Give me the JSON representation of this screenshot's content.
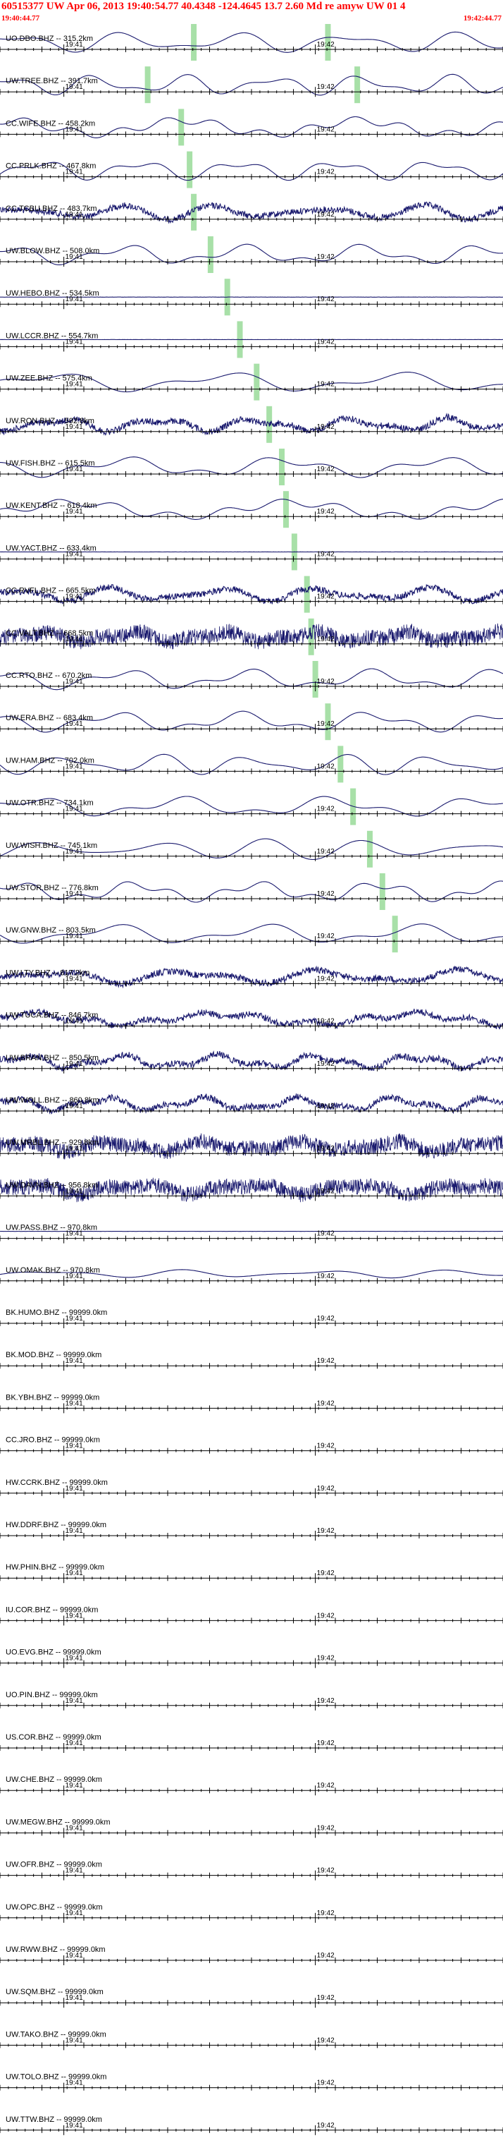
{
  "header": {
    "title": "60515377 UW Apr 06, 2013 19:40:54.77   40.4348 -124.4645 13.7 2.60 Md re amyw UW 01   4",
    "start_time": "19:40:44.77",
    "end_time": "19:42:44.77"
  },
  "colors": {
    "header_text": "#ff0000",
    "trace": "#1a1a6e",
    "pick": "#a8e0a8",
    "axis": "#000000",
    "label": "#000000"
  },
  "chart_data": {
    "type": "line",
    "title": "",
    "x_start": "19:40:44.77",
    "x_end": "19:42:44.77",
    "minute_ticks": [
      "19:41",
      "19:42"
    ],
    "channels": [
      {
        "label": "UO.DBO.BHZ -- 315.2km",
        "amp": "medium"
      },
      {
        "label": "UW.TREE.BHZ -- 391.7km",
        "amp": "medium"
      },
      {
        "label": "CC.WIFE.BHZ -- 458.2km",
        "amp": "medium"
      },
      {
        "label": "CC.PRLK.BHZ -- 467.8km",
        "amp": "medium"
      },
      {
        "label": "CC.TCBU.BHZ -- 483.7km",
        "amp": "noisy"
      },
      {
        "label": "UW.BLOW.BHZ -- 508.0km",
        "amp": "medium"
      },
      {
        "label": "UW.HEBO.BHZ -- 534.5km",
        "amp": "flat"
      },
      {
        "label": "UW.LCCR.BHZ -- 554.7km",
        "amp": "flat"
      },
      {
        "label": "UW.ZEE.BHZ -- 575.4km",
        "amp": "medium"
      },
      {
        "label": "UW.RON.BHZ -- 592.8km",
        "amp": "noisy"
      },
      {
        "label": "UW.FISH.BHZ -- 615.5km",
        "amp": "medium"
      },
      {
        "label": "UW.KENT.BHZ -- 618.4km",
        "amp": "medium"
      },
      {
        "label": "UW.YACT.BHZ -- 633.4km",
        "amp": "flat"
      },
      {
        "label": "CC.RVFL.BHZ -- 665.5km",
        "amp": "noisy"
      },
      {
        "label": "CC.VALT.BHZ -- 668.5km",
        "amp": "dense"
      },
      {
        "label": "CC.RTO.BHZ -- 670.2km",
        "amp": "medium"
      },
      {
        "label": "UW.ERA.BHZ -- 683.4km",
        "amp": "medium"
      },
      {
        "label": "UW.HAM.BHZ -- 702.0km",
        "amp": "medium"
      },
      {
        "label": "UW.OTR.BHZ -- 734.1km",
        "amp": "medium"
      },
      {
        "label": "UW.WISH.BHZ -- 745.1km",
        "amp": "medium"
      },
      {
        "label": "UW.STOR.BHZ -- 776.8km",
        "amp": "medium"
      },
      {
        "label": "UW.GNW.BHZ -- 803.5km",
        "amp": "medium"
      },
      {
        "label": "UW.LTY.BHZ -- 817.2km",
        "amp": "noisy"
      },
      {
        "label": "UW.TUCA.BHZ -- 846.7km",
        "amp": "noisy"
      },
      {
        "label": "UW.BRAN.BHZ -- 850.5km",
        "amp": "noisy"
      },
      {
        "label": "UW.WOLL.BHZ -- 860.8km",
        "amp": "noisy"
      },
      {
        "label": "UW.MRBL.BHZ -- 929.8km",
        "amp": "dense"
      },
      {
        "label": "UW.DAVN.BHZ -- 956.8km",
        "amp": "dense"
      },
      {
        "label": "UW.PASS.BHZ -- 970.8km",
        "amp": "flat"
      },
      {
        "label": "UW.OMAK.BHZ -- 970.8km",
        "amp": "small"
      },
      {
        "label": "BK.HUMO.BHZ -- 99999.0km",
        "amp": "none"
      },
      {
        "label": "BK.MOD.BHZ -- 99999.0km",
        "amp": "none"
      },
      {
        "label": "BK.YBH.BHZ -- 99999.0km",
        "amp": "none"
      },
      {
        "label": "CC.JRO.BHZ -- 99999.0km",
        "amp": "none"
      },
      {
        "label": "HW.CCRK.BHZ -- 99999.0km",
        "amp": "none"
      },
      {
        "label": "HW.DDRF.BHZ -- 99999.0km",
        "amp": "none"
      },
      {
        "label": "HW.PHIN.BHZ -- 99999.0km",
        "amp": "none"
      },
      {
        "label": "IU.COR.BHZ -- 99999.0km",
        "amp": "none"
      },
      {
        "label": "UO.EVG.BHZ -- 99999.0km",
        "amp": "none"
      },
      {
        "label": "UO.PIN.BHZ -- 99999.0km",
        "amp": "none"
      },
      {
        "label": "US.COR.BHZ -- 99999.0km",
        "amp": "none"
      },
      {
        "label": "UW.CHE.BHZ -- 99999.0km",
        "amp": "none"
      },
      {
        "label": "UW.MEGW.BHZ -- 99999.0km",
        "amp": "none"
      },
      {
        "label": "UW.OFR.BHZ -- 99999.0km",
        "amp": "none"
      },
      {
        "label": "UW.OPC.BHZ -- 99999.0km",
        "amp": "none"
      },
      {
        "label": "UW.RWW.BHZ -- 99999.0km",
        "amp": "none"
      },
      {
        "label": "UW.SQM.BHZ -- 99999.0km",
        "amp": "none"
      },
      {
        "label": "UW.TAKO.BHZ -- 99999.0km",
        "amp": "none"
      },
      {
        "label": "UW.TOLO.BHZ -- 99999.0km",
        "amp": "none"
      },
      {
        "label": "UW.TTW.BHZ -- 99999.0km",
        "amp": "none"
      }
    ],
    "picks": [
      {
        "row": 0,
        "times": [
          "19:41:31",
          "19:42:03"
        ]
      },
      {
        "row": 1,
        "times": [
          "19:41:20",
          "19:42:10"
        ]
      },
      {
        "row": 2,
        "times": [
          "19:41:28"
        ]
      },
      {
        "row": 3,
        "times": [
          "19:41:30"
        ]
      },
      {
        "row": 4,
        "times": [
          "19:41:31"
        ]
      },
      {
        "row": 5,
        "times": [
          "19:41:35"
        ]
      },
      {
        "row": 6,
        "times": [
          "19:41:39"
        ]
      },
      {
        "row": 7,
        "times": [
          "19:41:42"
        ]
      },
      {
        "row": 8,
        "times": [
          "19:41:46"
        ]
      },
      {
        "row": 9,
        "times": [
          "19:41:49"
        ]
      },
      {
        "row": 10,
        "times": [
          "19:41:52"
        ]
      },
      {
        "row": 11,
        "times": [
          "19:41:53"
        ]
      },
      {
        "row": 12,
        "times": [
          "19:41:55"
        ]
      },
      {
        "row": 13,
        "times": [
          "19:41:58"
        ]
      },
      {
        "row": 14,
        "times": [
          "19:41:59"
        ]
      },
      {
        "row": 15,
        "times": [
          "19:42:00"
        ]
      },
      {
        "row": 16,
        "times": [
          "19:42:03"
        ]
      },
      {
        "row": 17,
        "times": [
          "19:42:06"
        ]
      },
      {
        "row": 18,
        "times": [
          "19:42:09"
        ]
      },
      {
        "row": 19,
        "times": [
          "19:42:13"
        ]
      },
      {
        "row": 20,
        "times": [
          "19:42:16"
        ]
      },
      {
        "row": 21,
        "times": [
          "19:42:19"
        ]
      }
    ]
  }
}
